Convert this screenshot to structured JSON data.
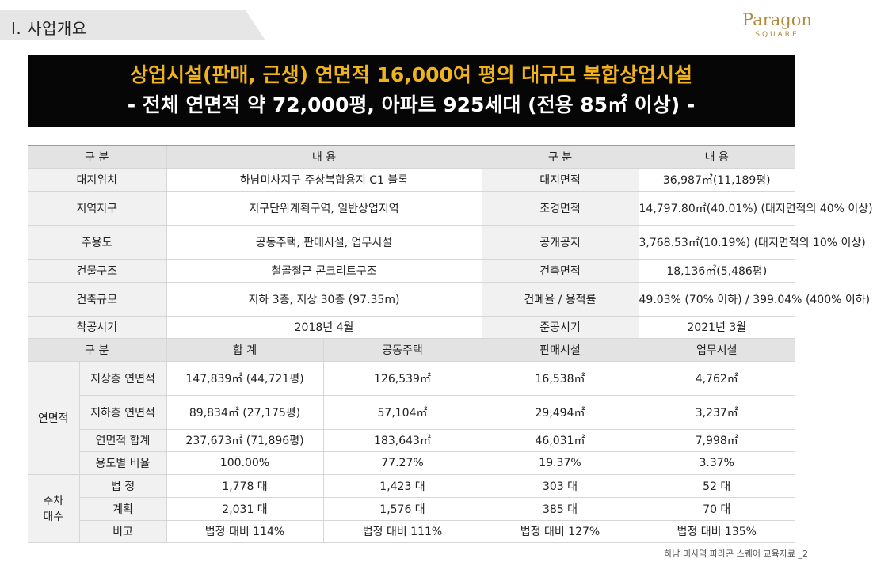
{
  "header": {
    "section_title": "Ⅰ. 사업개요",
    "logo_main": "Paragon",
    "logo_sub": "SQUARE"
  },
  "banner": {
    "line1": "상업시설(판매, 근생) 연면적 16,000여 평의 대규모 복합상업시설",
    "line2": "- 전체 연면적 약 72,000평, 아파트 925세대 (전용 85㎡ 이상) -"
  },
  "overview": {
    "headers": [
      "구 분",
      "내 용",
      "구 분",
      "내 용"
    ],
    "rows": [
      [
        "대지위치",
        "하남미사지구 주상복합용지 C1 블록",
        "대지면적",
        "36,987㎡(11,189평)"
      ],
      [
        "지역지구",
        "지구단위계획구역, 일반상업지역",
        "조경면적",
        "14,797.80㎡(40.01%) (대지면적의 40% 이상)"
      ],
      [
        "주용도",
        "공동주택, 판매시설, 업무시설",
        "공개공지",
        "3,768.53㎡(10.19%) (대지면적의 10% 이상)"
      ],
      [
        "건물구조",
        "철골철근 콘크리트구조",
        "건축면적",
        "18,136㎡(5,486평)"
      ],
      [
        "건축규모",
        "지하 3층, 지상 30층 (97.35m)",
        "건폐율 / 용적률",
        "49.03% (70% 이하) / 399.04% (400% 이하)"
      ],
      [
        "착공시기",
        "2018년 4월",
        "준공시기",
        "2021년 3월"
      ]
    ]
  },
  "area": {
    "headers": [
      "구 분",
      "합 계",
      "공동주택",
      "판매시설",
      "업무시설"
    ],
    "group_label": "연면적",
    "rows": [
      [
        "지상층 연면적",
        "147,839㎡ (44,721평)",
        "126,539㎡",
        "16,538㎡",
        "4,762㎡"
      ],
      [
        "지하층 연면적",
        "89,834㎡ (27,175평)",
        "57,104㎡",
        "29,494㎡",
        "3,237㎡"
      ],
      [
        "연면적 합계",
        "237,673㎡ (71,896평)",
        "183,643㎡",
        "46,031㎡",
        "7,998㎡"
      ],
      [
        "용도별 비율",
        "100.00%",
        "77.27%",
        "19.37%",
        "3.37%"
      ]
    ]
  },
  "parking": {
    "group_label_line1": "주차",
    "group_label_line2": "대수",
    "rows": [
      [
        "법 정",
        "1,778 대",
        "1,423 대",
        "303 대",
        "52 대"
      ],
      [
        "계획",
        "2,031 대",
        "1,576 대",
        "385 대",
        "70 대"
      ],
      [
        "비고",
        "법정 대비 114%",
        "법정 대비 111%",
        "법정 대비 127%",
        "법정 대비 135%"
      ]
    ]
  },
  "footer": {
    "text": "하남 미사역 파라곤 스퀘어 교육자료 _2"
  }
}
